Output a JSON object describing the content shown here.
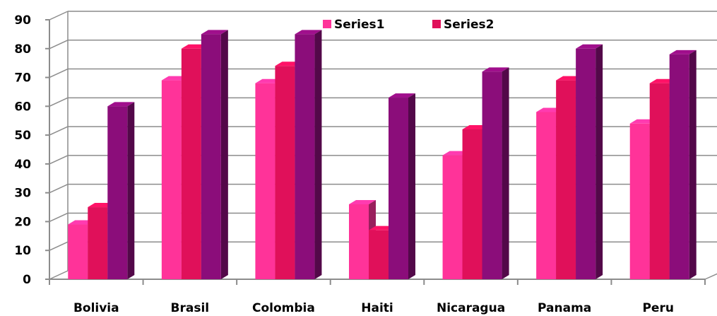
{
  "chart_data": {
    "type": "bar",
    "categories": [
      "Bolivia",
      "Brasil",
      "Colombia",
      "Haiti",
      "Nicaragua",
      "Panama",
      "Peru"
    ],
    "series": [
      {
        "name": "Series1",
        "values": [
          19,
          69,
          68,
          26,
          43,
          58,
          54
        ],
        "color": "#ff3399"
      },
      {
        "name": "Series2",
        "values": [
          25,
          80,
          74,
          17,
          52,
          69,
          68
        ],
        "color": "#e0105a"
      },
      {
        "name": "",
        "values": [
          60,
          85,
          85,
          63,
          72,
          80,
          78
        ],
        "color": "#8b0d7a"
      }
    ],
    "ylim": [
      0,
      90
    ],
    "yticks": [
      "0",
      "10",
      "20",
      "30",
      "40",
      "50",
      "60",
      "70",
      "80",
      "90"
    ],
    "grid": true,
    "legend": "top-center",
    "style": "3d-clustered-columns"
  }
}
